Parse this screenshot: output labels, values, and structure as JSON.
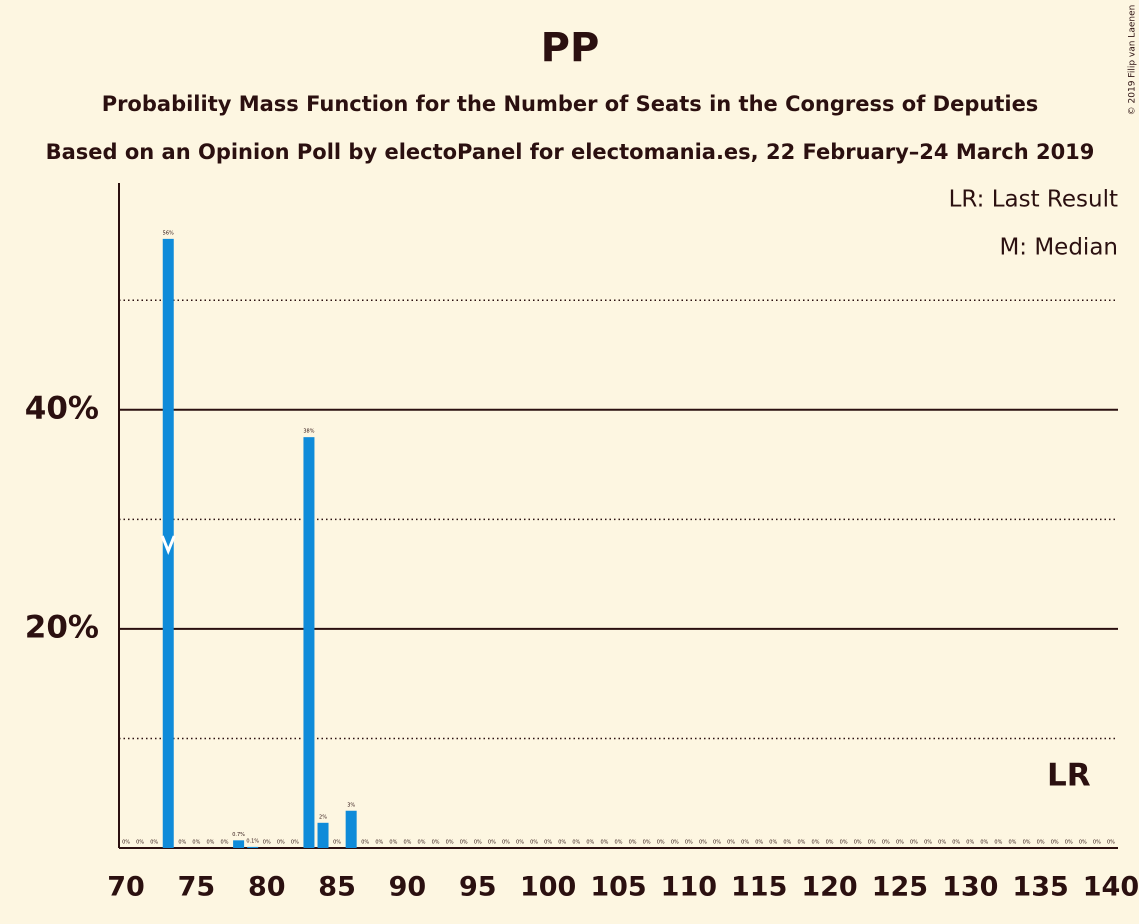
{
  "chart_data": {
    "type": "bar",
    "title": "PP",
    "subtitle": "Probability Mass Function for the Number of Seats in the Congress of Deputies",
    "subtitle2": "Based on an Opinion Poll by electoPanel for electomania.es, 22 February–24 March 2019",
    "legend": [
      "LR: Last Result",
      "M: Median"
    ],
    "credit": "© 2019 Filip van Laenen",
    "color": "#0f8bd9",
    "x": [
      70,
      71,
      72,
      73,
      74,
      75,
      76,
      77,
      78,
      79,
      80,
      81,
      82,
      83,
      84,
      85,
      86,
      87,
      88,
      89,
      90,
      91,
      92,
      93,
      94,
      95,
      96,
      97,
      98,
      99,
      100,
      101,
      102,
      103,
      104,
      105,
      106,
      107,
      108,
      109,
      110,
      111,
      112,
      113,
      114,
      115,
      116,
      117,
      118,
      119,
      120,
      121,
      122,
      123,
      124,
      125,
      126,
      127,
      128,
      129,
      130,
      131,
      132,
      133,
      134,
      135,
      136,
      137,
      138,
      139,
      140
    ],
    "values": [
      0,
      0,
      0,
      55.6,
      0,
      0,
      0,
      0,
      0.7,
      0.1,
      0,
      0,
      0,
      37.5,
      2.3,
      0,
      3.4,
      0,
      0,
      0,
      0,
      0,
      0,
      0,
      0,
      0,
      0,
      0,
      0,
      0,
      0,
      0,
      0,
      0,
      0,
      0,
      0,
      0,
      0,
      0,
      0,
      0,
      0,
      0,
      0,
      0,
      0,
      0,
      0,
      0,
      0,
      0,
      0,
      0,
      0,
      0,
      0,
      0,
      0,
      0,
      0,
      0,
      0,
      0,
      0,
      0,
      0,
      0,
      0,
      0,
      0
    ],
    "value_labels": [
      "0%",
      "0%",
      "0%",
      "56%",
      "0%",
      "0%",
      "0%",
      "0%",
      "0.7%",
      "0.1%",
      "0%",
      "0%",
      "0%",
      "38%",
      "2%",
      "0%",
      "3%",
      "0%",
      "0%",
      "0%",
      "0%",
      "0%",
      "0%",
      "0%",
      "0%",
      "0%",
      "0%",
      "0%",
      "0%",
      "0%",
      "0%",
      "0%",
      "0%",
      "0%",
      "0%",
      "0%",
      "0%",
      "0%",
      "0%",
      "0%",
      "0%",
      "0%",
      "0%",
      "0%",
      "0%",
      "0%",
      "0%",
      "0%",
      "0%",
      "0%",
      "0%",
      "0%",
      "0%",
      "0%",
      "0%",
      "0%",
      "0%",
      "0%",
      "0%",
      "0%",
      "0%",
      "0%",
      "0%",
      "0%",
      "0%",
      "0%",
      "0%",
      "0%",
      "0%",
      "0%",
      "0%"
    ],
    "xlim": [
      69.5,
      140.5
    ],
    "xticks": [
      70,
      75,
      80,
      85,
      90,
      95,
      100,
      105,
      110,
      115,
      120,
      125,
      130,
      135,
      140
    ],
    "ylim": [
      0,
      60.7
    ],
    "yticks": [
      {
        "value": 20,
        "label": "20%"
      },
      {
        "value": 40,
        "label": "40%"
      }
    ],
    "minor_yticks": [
      10,
      30,
      50
    ],
    "median": {
      "x": 73
    },
    "last_result": {
      "x": 137,
      "label": "LR"
    }
  }
}
